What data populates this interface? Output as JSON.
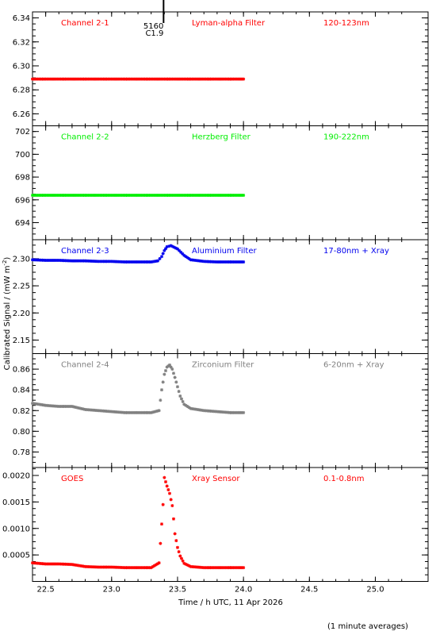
{
  "chart_data": {
    "type": "scatter",
    "xlabel": "Time / h UTC, 11 Apr 2026",
    "ylabel": "Calibrated Signal / (mW m",
    "ylabel_sup": "-2",
    "ylabel_close": ")",
    "footnote": "(1 minute averages)",
    "xlim": [
      22.4,
      25.4
    ],
    "x_ticks": [
      22.5,
      23.0,
      23.5,
      24.0,
      24.5,
      25.0
    ],
    "x_tick_labels": [
      "22.5",
      "23.0",
      "23.5",
      "24.0",
      "24.5",
      "25.0"
    ],
    "event_marker": {
      "x": 23.4,
      "label_top": "5160",
      "label_bottom": "C1.9"
    },
    "panels": [
      {
        "channel": "Channel 2-1",
        "filter": "Lyman-alpha Filter",
        "band": "120-123nm",
        "color": "#ff0000",
        "ylim": [
          6.25,
          6.345
        ],
        "y_ticks": [
          6.26,
          6.28,
          6.3,
          6.32,
          6.34
        ],
        "y_tick_labels": [
          "6.26",
          "6.28",
          "6.30",
          "6.32",
          "6.34"
        ],
        "series": {
          "x": [
            22.4,
            22.5,
            22.6,
            22.7,
            22.8,
            22.9,
            23.0,
            23.1,
            23.2,
            23.3,
            23.4,
            23.5,
            23.6,
            23.7,
            23.8,
            23.9,
            24.0
          ],
          "y": [
            6.289,
            6.289,
            6.289,
            6.289,
            6.289,
            6.289,
            6.289,
            6.289,
            6.289,
            6.289,
            6.289,
            6.289,
            6.289,
            6.289,
            6.289,
            6.289,
            6.289
          ]
        }
      },
      {
        "channel": "Channel 2-2",
        "filter": "Herzberg Filter",
        "band": "190-222nm",
        "color": "#00ee00",
        "ylim": [
          692.5,
          702.5
        ],
        "y_ticks": [
          694,
          696,
          698,
          700,
          702
        ],
        "y_tick_labels": [
          "694",
          "696",
          "698",
          "700",
          "702"
        ],
        "series": {
          "x": [
            22.4,
            22.5,
            22.6,
            22.7,
            22.8,
            22.9,
            23.0,
            23.1,
            23.2,
            23.3,
            23.4,
            23.5,
            23.6,
            23.7,
            23.8,
            23.9,
            24.0
          ],
          "y": [
            696.4,
            696.4,
            696.4,
            696.4,
            696.4,
            696.4,
            696.4,
            696.4,
            696.4,
            696.4,
            696.4,
            696.4,
            696.4,
            696.4,
            696.4,
            696.4,
            696.4
          ]
        }
      },
      {
        "channel": "Channel 2-3",
        "filter": "Aluminium Filter",
        "band": "17-80nm + Xray",
        "color": "#0000ee",
        "ylim": [
          2.125,
          2.335
        ],
        "y_ticks": [
          2.15,
          2.2,
          2.25,
          2.3
        ],
        "y_tick_labels": [
          "2.15",
          "2.20",
          "2.25",
          "2.30"
        ],
        "series": {
          "x": [
            22.4,
            22.5,
            22.6,
            22.7,
            22.8,
            22.9,
            23.0,
            23.1,
            23.2,
            23.3,
            23.35,
            23.38,
            23.4,
            23.42,
            23.45,
            23.5,
            23.55,
            23.6,
            23.7,
            23.8,
            23.9,
            24.0
          ],
          "y": [
            2.298,
            2.297,
            2.297,
            2.296,
            2.296,
            2.295,
            2.295,
            2.294,
            2.294,
            2.294,
            2.296,
            2.304,
            2.315,
            2.322,
            2.324,
            2.318,
            2.306,
            2.298,
            2.295,
            2.294,
            2.294,
            2.294
          ]
        }
      },
      {
        "channel": "Channel 2-4",
        "filter": "Zirconium Filter",
        "band": "6-20nm + Xray",
        "color": "#808080",
        "ylim": [
          0.765,
          0.875
        ],
        "y_ticks": [
          0.78,
          0.8,
          0.82,
          0.84,
          0.86
        ],
        "y_tick_labels": [
          "0.78",
          "0.80",
          "0.82",
          "0.84",
          "0.86"
        ],
        "series": {
          "x": [
            22.4,
            22.5,
            22.6,
            22.7,
            22.8,
            22.9,
            23.0,
            23.1,
            23.2,
            23.3,
            23.36,
            23.38,
            23.4,
            23.42,
            23.44,
            23.46,
            23.48,
            23.5,
            23.52,
            23.55,
            23.6,
            23.7,
            23.8,
            23.9,
            24.0
          ],
          "y": [
            0.827,
            0.825,
            0.824,
            0.824,
            0.821,
            0.82,
            0.819,
            0.818,
            0.818,
            0.818,
            0.82,
            0.84,
            0.855,
            0.862,
            0.864,
            0.86,
            0.852,
            0.843,
            0.834,
            0.826,
            0.822,
            0.82,
            0.819,
            0.818,
            0.818
          ]
        }
      },
      {
        "channel": "GOES",
        "filter": "Xray Sensor",
        "band": "0.1-0.8nm",
        "color": "#ff0000",
        "ylim": [
          0.0,
          0.00215
        ],
        "y_ticks": [
          0.0005,
          0.001,
          0.0015,
          0.002
        ],
        "y_tick_labels": [
          "0.0005",
          "0.0010",
          "0.0015",
          "0.0020"
        ],
        "series": {
          "x": [
            22.4,
            22.5,
            22.6,
            22.7,
            22.8,
            22.9,
            23.0,
            23.1,
            23.2,
            23.3,
            23.36,
            23.39,
            23.4,
            23.42,
            23.44,
            23.46,
            23.47,
            23.48,
            23.5,
            23.52,
            23.55,
            23.6,
            23.7,
            23.8,
            23.9,
            24.0
          ],
          "y": [
            0.00035,
            0.00033,
            0.00033,
            0.00032,
            0.00028,
            0.00027,
            0.00027,
            0.00026,
            0.00026,
            0.00026,
            0.00035,
            0.00145,
            0.00196,
            0.0018,
            0.00166,
            0.00143,
            0.00118,
            0.0009,
            0.00064,
            0.00048,
            0.00034,
            0.00028,
            0.00026,
            0.00026,
            0.00026,
            0.00026
          ]
        }
      }
    ]
  }
}
